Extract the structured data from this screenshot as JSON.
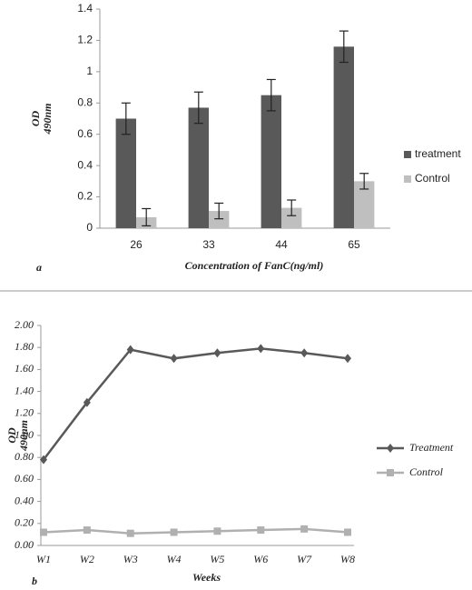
{
  "chart_data": [
    {
      "type": "bar",
      "panel": "a",
      "x_label": "Concentration of FanC(ng/ml)",
      "y_label": "OD",
      "y_label_unit": "490nm",
      "categories": [
        "26",
        "33",
        "44",
        "65"
      ],
      "series": [
        {
          "name": "treatment",
          "color": "#595959",
          "values": [
            0.7,
            0.77,
            0.85,
            1.16
          ],
          "errors": [
            0.1,
            0.1,
            0.1,
            0.1
          ]
        },
        {
          "name": "Control",
          "color": "#bfbfbf",
          "values": [
            0.07,
            0.11,
            0.13,
            0.3
          ],
          "errors": [
            0.055,
            0.05,
            0.05,
            0.05
          ]
        }
      ],
      "ylim": [
        0,
        1.4
      ],
      "yticks": [
        0,
        0.2,
        0.4,
        0.6,
        0.8,
        1,
        1.2,
        1.4
      ],
      "grid": false,
      "legend": "right"
    },
    {
      "type": "line",
      "panel": "b",
      "x_label": "Weeks",
      "y_label": "OD",
      "y_label_unit": "490nm",
      "categories": [
        "W1",
        "W2",
        "W3",
        "W4",
        "W5",
        "W6",
        "W7",
        "W8"
      ],
      "series": [
        {
          "name": "Treatment",
          "color": "#595959",
          "marker": "diamond",
          "values": [
            0.78,
            1.3,
            1.78,
            1.7,
            1.75,
            1.79,
            1.75,
            1.7
          ]
        },
        {
          "name": "Control",
          "color": "#b0b0b0",
          "marker": "square",
          "values": [
            0.12,
            0.14,
            0.11,
            0.12,
            0.13,
            0.14,
            0.15,
            0.12
          ]
        }
      ],
      "ylim": [
        0,
        2
      ],
      "yticks": [
        {
          "value": 0,
          "label": "0.00"
        },
        {
          "value": 0.2,
          "label": "0.20"
        },
        {
          "value": 0.4,
          "label": "0.40"
        },
        {
          "value": 0.6,
          "label": "0.60"
        },
        {
          "value": 0.8,
          "label": "0.80"
        },
        {
          "value": 1,
          "label": "1.00"
        },
        {
          "value": 1.2,
          "label": "1.20"
        },
        {
          "value": 1.4,
          "label": "1.40"
        },
        {
          "value": 1.6,
          "label": "1.60"
        },
        {
          "value": 1.8,
          "label": "1.80"
        },
        {
          "value": 2,
          "label": "2.00"
        }
      ],
      "grid": false,
      "legend": "right"
    }
  ]
}
